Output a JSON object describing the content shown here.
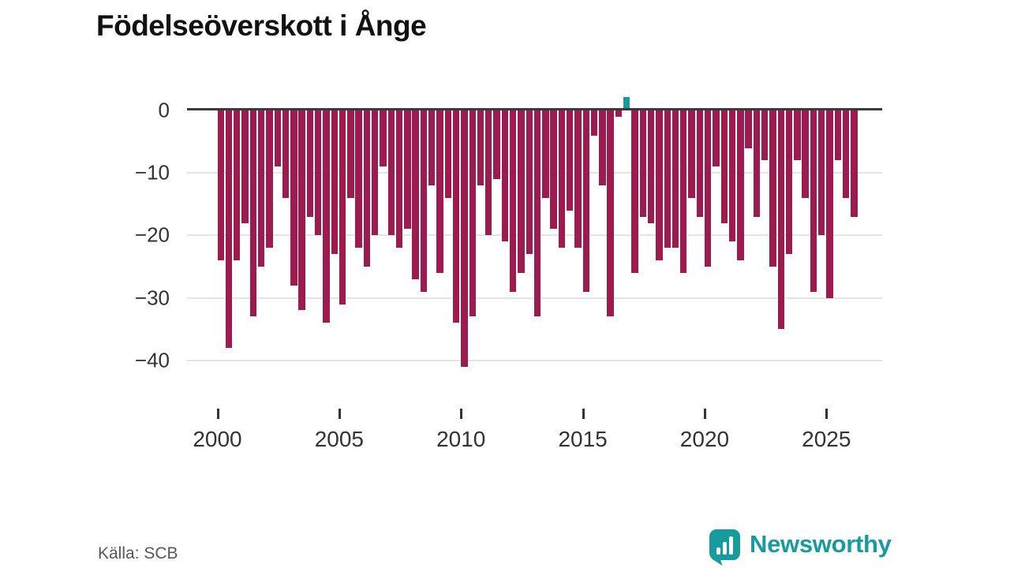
{
  "title": "Födelseöverskott i Ånge",
  "source": "Källa: SCB",
  "logo": {
    "brand": "Newsworthy",
    "icon": "bar-chart-bubble-icon"
  },
  "colors": {
    "negative_bar": "#9e1b50",
    "positive_bar": "#169c9c",
    "axis": "#3a3a3a",
    "grid": "#e4e4e4",
    "brand_teal": "#169c9c",
    "text": "#333333"
  },
  "chart_data": {
    "type": "bar",
    "title": "Födelseöverskott i Ånge",
    "xlabel": "",
    "ylabel": "",
    "x_start_year": 2000,
    "periods_per_year": 3,
    "x_range": [
      2000,
      2026.33
    ],
    "ylim": [
      -45,
      4
    ],
    "grid": "horizontal",
    "legend": "none",
    "yticks": [
      {
        "label": "0",
        "v": 0
      },
      {
        "label": "−10",
        "v": -10
      },
      {
        "label": "−20",
        "v": -20
      },
      {
        "label": "−30",
        "v": -30
      },
      {
        "label": "−40",
        "v": -40
      }
    ],
    "xticks": [
      {
        "label": "2000",
        "year": 2000
      },
      {
        "label": "2005",
        "year": 2005
      },
      {
        "label": "2010",
        "year": 2010
      },
      {
        "label": "2015",
        "year": 2015
      },
      {
        "label": "2020",
        "year": 2020
      },
      {
        "label": "2025",
        "year": 2025
      }
    ],
    "series": [
      {
        "name": "Födelseöverskott",
        "values": [
          -24,
          -38,
          -24,
          -18,
          -33,
          -25,
          -22,
          -9,
          -14,
          -28,
          -32,
          -17,
          -20,
          -34,
          -23,
          -31,
          -14,
          -22,
          -25,
          -20,
          -9,
          -20,
          -22,
          -19,
          -27,
          -29,
          -12,
          -26,
          -14,
          -34,
          -41,
          -33,
          -12,
          -20,
          -11,
          -21,
          -29,
          -26,
          -23,
          -33,
          -14,
          -19,
          -22,
          -16,
          -22,
          -29,
          -4,
          -12,
          -33,
          -1,
          2,
          -26,
          -17,
          -18,
          -24,
          -22,
          -22,
          -26,
          -14,
          -17,
          -25,
          -9,
          -18,
          -21,
          -24,
          -6,
          -17,
          -8,
          -25,
          -35,
          -23,
          -8,
          -14,
          -29,
          -20,
          -30,
          -8,
          -14,
          -17
        ]
      }
    ]
  }
}
